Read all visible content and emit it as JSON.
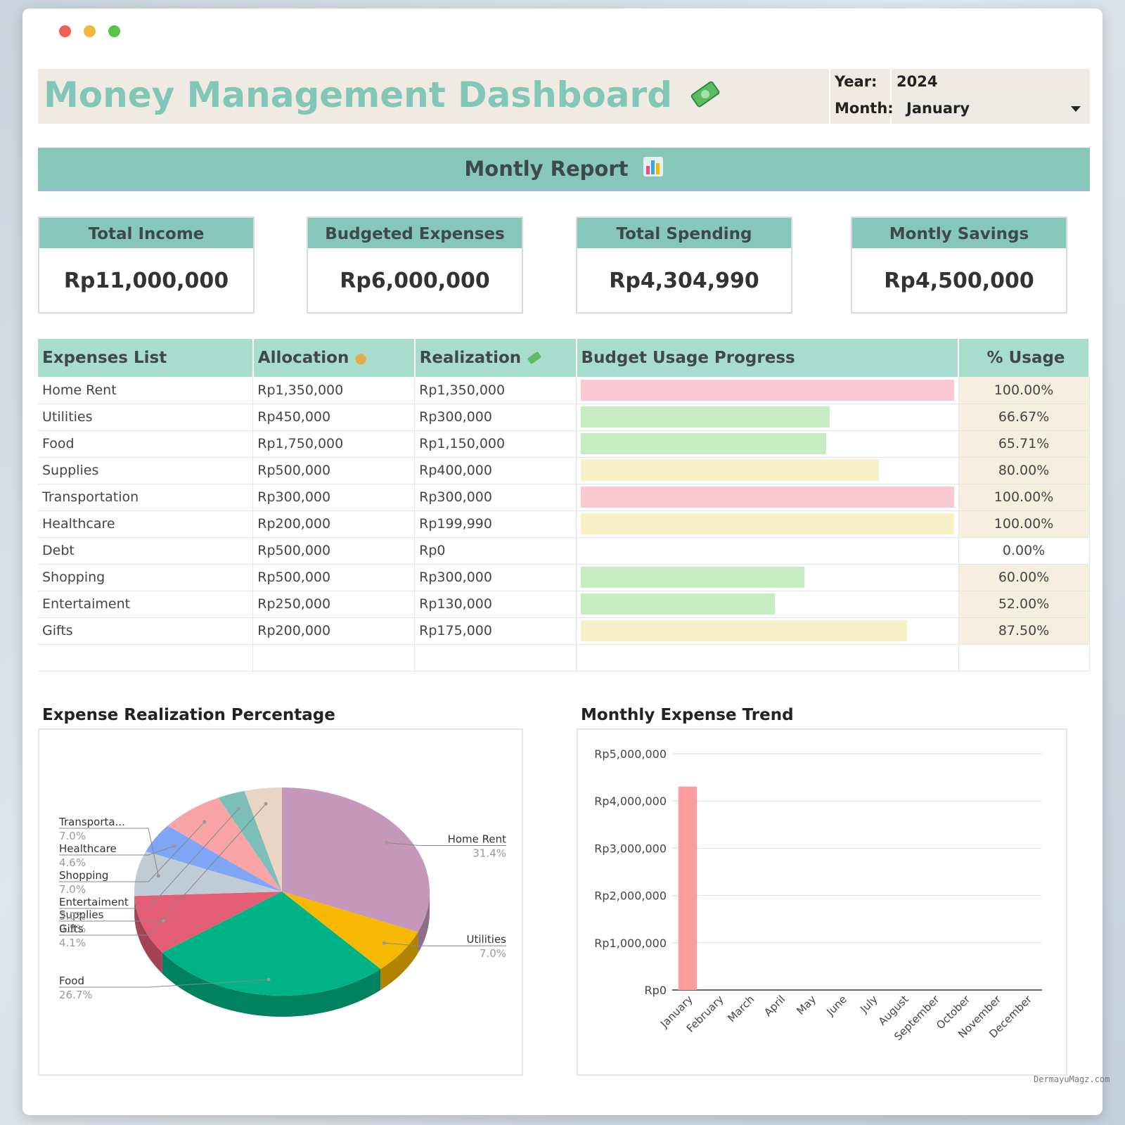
{
  "header": {
    "title": "Money Management Dashboard",
    "year_label": "Year:",
    "year_value": "2024",
    "month_label": "Month:",
    "month_value": "January"
  },
  "report": {
    "title": "Montly Report"
  },
  "cards": [
    {
      "title": "Total Income",
      "value": "Rp11,000,000"
    },
    {
      "title": "Budgeted Expenses",
      "value": "Rp6,000,000"
    },
    {
      "title": "Total Spending",
      "value": "Rp4,304,990"
    },
    {
      "title": "Montly Savings",
      "value": "Rp4,500,000"
    }
  ],
  "table": {
    "headers": {
      "name": "Expenses List",
      "allocation": "Allocation",
      "realization": "Realization",
      "progress": "Budget Usage Progress",
      "usage": "% Usage"
    },
    "rows": [
      {
        "name": "Home Rent",
        "allocation": "Rp1,350,000",
        "realization": "Rp1,350,000",
        "usage": "100.00%",
        "fraction": 1.0,
        "bar_color": "#f9c9d3"
      },
      {
        "name": "Utilities",
        "allocation": "Rp450,000",
        "realization": "Rp300,000",
        "usage": "66.67%",
        "fraction": 0.6667,
        "bar_color": "#c6ecc1"
      },
      {
        "name": "Food",
        "allocation": "Rp1,750,000",
        "realization": "Rp1,150,000",
        "usage": "65.71%",
        "fraction": 0.6571,
        "bar_color": "#c6ecc1"
      },
      {
        "name": "Supplies",
        "allocation": "Rp500,000",
        "realization": "Rp400,000",
        "usage": "80.00%",
        "fraction": 0.8,
        "bar_color": "#f8f1c8"
      },
      {
        "name": "Transportation",
        "allocation": "Rp300,000",
        "realization": "Rp300,000",
        "usage": "100.00%",
        "fraction": 1.0,
        "bar_color": "#f9c9d3"
      },
      {
        "name": "Healthcare",
        "allocation": "Rp200,000",
        "realization": "Rp199,990",
        "usage": "100.00%",
        "fraction": 0.99995,
        "bar_color": "#f8f1c8"
      },
      {
        "name": "Debt",
        "allocation": "Rp500,000",
        "realization": "Rp0",
        "usage": "0.00%",
        "fraction": 0,
        "bar_color": "#ffffff"
      },
      {
        "name": "Shopping",
        "allocation": "Rp500,000",
        "realization": "Rp300,000",
        "usage": "60.00%",
        "fraction": 0.6,
        "bar_color": "#c6ecc1"
      },
      {
        "name": "Entertaiment",
        "allocation": "Rp250,000",
        "realization": "Rp130,000",
        "usage": "52.00%",
        "fraction": 0.52,
        "bar_color": "#c6ecc1"
      },
      {
        "name": "Gifts",
        "allocation": "Rp200,000",
        "realization": "Rp175,000",
        "usage": "87.50%",
        "fraction": 0.875,
        "bar_color": "#f8f1c8"
      }
    ]
  },
  "chart_data": [
    {
      "type": "pie",
      "title": "Expense Realization Percentage",
      "slices": [
        {
          "label": "Home Rent",
          "percent_label": "31.4%",
          "value": 31.4,
          "color": "#c497bb"
        },
        {
          "label": "Utilities",
          "percent_label": "7.0%",
          "value": 7.0,
          "color": "#f6b800"
        },
        {
          "label": "Food",
          "percent_label": "26.7%",
          "value": 26.7,
          "color": "#00b386"
        },
        {
          "label": "Supplies",
          "percent_label": "9.3%",
          "value": 9.3,
          "color": "#e35d74"
        },
        {
          "label": "Transporta...",
          "percent_label": "7.0%",
          "value": 7.0,
          "color": "#bfcbd5"
        },
        {
          "label": "Healthcare",
          "percent_label": "4.6%",
          "value": 4.6,
          "color": "#7ea6f5"
        },
        {
          "label": "Shopping",
          "percent_label": "7.0%",
          "value": 7.0,
          "color": "#f8a3a6"
        },
        {
          "label": "Entertaiment",
          "percent_label": "3.0%",
          "value": 3.0,
          "color": "#7bbfb8"
        },
        {
          "label": "Gifts",
          "percent_label": "4.1%",
          "value": 4.1,
          "color": "#ead5c5"
        }
      ]
    },
    {
      "type": "bar",
      "title": "Monthly Expense Trend",
      "categories": [
        "January",
        "February",
        "March",
        "April",
        "May",
        "June",
        "July",
        "August",
        "September",
        "October",
        "November",
        "December"
      ],
      "values": [
        4304990,
        0,
        0,
        0,
        0,
        0,
        0,
        0,
        0,
        0,
        0,
        0
      ],
      "ylim": [
        0,
        5000000
      ],
      "yticks": [
        "Rp0",
        "Rp1,000,000",
        "Rp2,000,000",
        "Rp3,000,000",
        "Rp4,000,000",
        "Rp5,000,000"
      ],
      "bar_color": "#fc9ea0",
      "grid": true
    }
  ],
  "watermark": "DermayuMagz.com"
}
